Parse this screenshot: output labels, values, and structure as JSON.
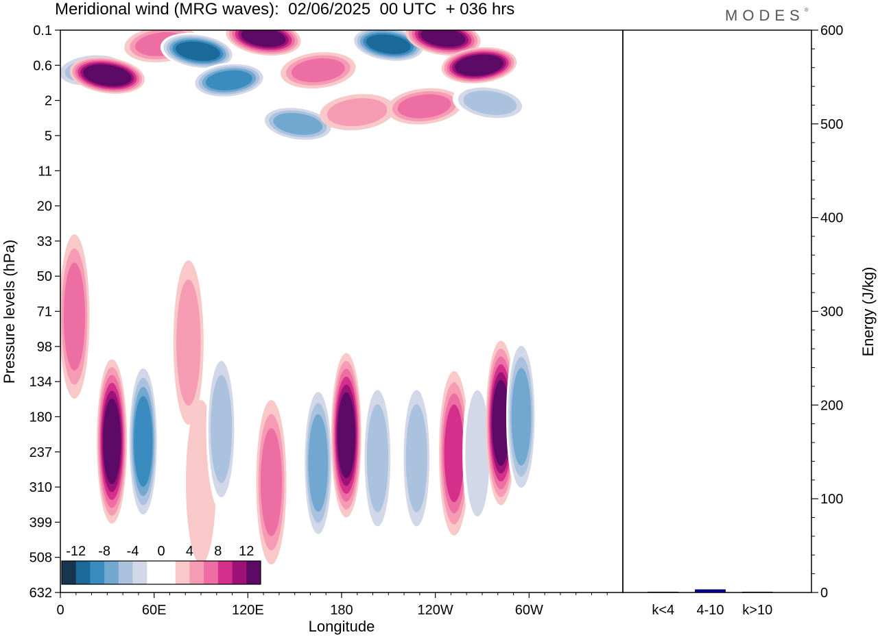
{
  "chart_data": [
    {
      "type": "heatmap",
      "title": "Meridional wind (MRG waves):  02/06/2025  00 UTC  + 036 hrs",
      "xlabel": "Longitude",
      "ylabel": "Pressure levels (hPa)",
      "x_ticks": [
        "0",
        "60E",
        "120E",
        "180",
        "120W",
        "60W"
      ],
      "y_ticks": [
        "0.1",
        "0.6",
        "2",
        "5",
        "11",
        "20",
        "33",
        "50",
        "71",
        "98",
        "134",
        "180",
        "237",
        "310",
        "399",
        "508",
        "632"
      ],
      "colorbar": {
        "labels": [
          "-12",
          "-8",
          "-4",
          "0",
          "4",
          "8",
          "12"
        ],
        "colors": [
          "#17364d",
          "#1b6a9a",
          "#3a8cc0",
          "#72a7cf",
          "#abc2de",
          "#d3d8e8",
          "#ffffff",
          "#ffffff",
          "#f9c9c9",
          "#f59bb4",
          "#ec6ea3",
          "#d4308b",
          "#9c1276",
          "#5d0a66"
        ]
      },
      "features": [
        {
          "x": 20,
          "y": 0.8,
          "value": -6
        },
        {
          "x": 30,
          "y": 1.0,
          "value": 14
        },
        {
          "x": 65,
          "y": 0.3,
          "value": 6
        },
        {
          "x": 88,
          "y": 0.4,
          "value": -12
        },
        {
          "x": 108,
          "y": 1.2,
          "value": -11
        },
        {
          "x": 130,
          "y": 0.2,
          "value": 13
        },
        {
          "x": 165,
          "y": 0.8,
          "value": 7
        },
        {
          "x": 152,
          "y": 4,
          "value": -9
        },
        {
          "x": 190,
          "y": 3,
          "value": 5
        },
        {
          "x": 210,
          "y": 0.3,
          "value": -13
        },
        {
          "x": 233,
          "y": 2.5,
          "value": 6
        },
        {
          "x": 245,
          "y": 0.2,
          "value": 13
        },
        {
          "x": 268,
          "y": 0.6,
          "value": 14
        },
        {
          "x": 275,
          "y": 2.2,
          "value": -6
        },
        {
          "x": 9,
          "y": 75,
          "value": 7
        },
        {
          "x": 33,
          "y": 220,
          "value": 12
        },
        {
          "x": 53,
          "y": 220,
          "value": -10
        },
        {
          "x": 82,
          "y": 95,
          "value": 5
        },
        {
          "x": 90,
          "y": 300,
          "value": 2
        },
        {
          "x": 103,
          "y": 200,
          "value": -6
        },
        {
          "x": 135,
          "y": 300,
          "value": 7
        },
        {
          "x": 165,
          "y": 260,
          "value": -8
        },
        {
          "x": 183,
          "y": 210,
          "value": 12
        },
        {
          "x": 203,
          "y": 250,
          "value": -6
        },
        {
          "x": 228,
          "y": 250,
          "value": -7
        },
        {
          "x": 252,
          "y": 240,
          "value": 9
        },
        {
          "x": 267,
          "y": 240,
          "value": -5
        },
        {
          "x": 282,
          "y": 190,
          "value": 13
        },
        {
          "x": 295,
          "y": 180,
          "value": -9
        }
      ]
    },
    {
      "type": "bar",
      "ylabel": "Energy (J/kg)",
      "categories": [
        "k<4",
        "4-10",
        "k>10"
      ],
      "values": [
        0.5,
        3,
        0.5
      ],
      "bar_color": "#0000aa",
      "ylim": [
        0,
        600
      ],
      "y_ticks": [
        "0",
        "100",
        "200",
        "300",
        "400",
        "500",
        "600"
      ]
    }
  ]
}
